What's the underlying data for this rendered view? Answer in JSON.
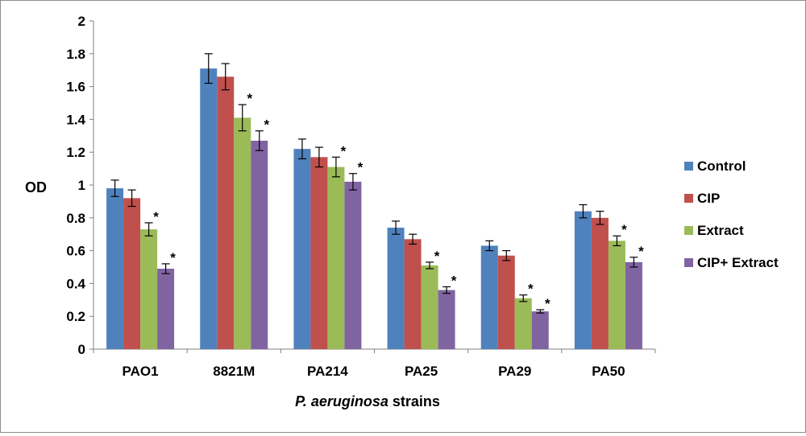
{
  "chart_data": {
    "type": "bar",
    "ylabel": "OD",
    "xlabel": {
      "italic": "P. aeruginosa",
      "rest": " strains"
    },
    "ylim": [
      0,
      2
    ],
    "yticks": [
      "0",
      "0.2",
      "0.4",
      "0.6",
      "0.8",
      "1",
      "1.2",
      "1.4",
      "1.6",
      "1.8",
      "2"
    ],
    "categories": [
      "PAO1",
      "8821M",
      "PA214",
      "PA25",
      "PA29",
      "PA50"
    ],
    "legend_position": "right",
    "significance_marker": "*",
    "series": [
      {
        "name": "Control",
        "color": "#4f81bd",
        "values": [
          0.98,
          1.71,
          1.22,
          0.74,
          0.63,
          0.84
        ],
        "errors": [
          0.05,
          0.09,
          0.06,
          0.04,
          0.03,
          0.04
        ],
        "significant": [
          false,
          false,
          false,
          false,
          false,
          false
        ]
      },
      {
        "name": "CIP",
        "color": "#c0504d",
        "values": [
          0.92,
          1.66,
          1.17,
          0.67,
          0.57,
          0.8
        ],
        "errors": [
          0.05,
          0.08,
          0.06,
          0.03,
          0.03,
          0.04
        ],
        "significant": [
          false,
          false,
          false,
          false,
          false,
          false
        ]
      },
      {
        "name": "Extract",
        "color": "#9bbb59",
        "values": [
          0.73,
          1.41,
          1.11,
          0.51,
          0.31,
          0.66
        ],
        "errors": [
          0.04,
          0.08,
          0.06,
          0.02,
          0.02,
          0.03
        ],
        "significant": [
          true,
          true,
          true,
          true,
          true,
          true
        ]
      },
      {
        "name": "CIP+ Extract",
        "color": "#8064a2",
        "values": [
          0.49,
          1.27,
          1.02,
          0.36,
          0.23,
          0.53
        ],
        "errors": [
          0.03,
          0.06,
          0.05,
          0.02,
          0.01,
          0.03
        ],
        "significant": [
          true,
          true,
          true,
          true,
          true,
          true
        ]
      }
    ]
  }
}
